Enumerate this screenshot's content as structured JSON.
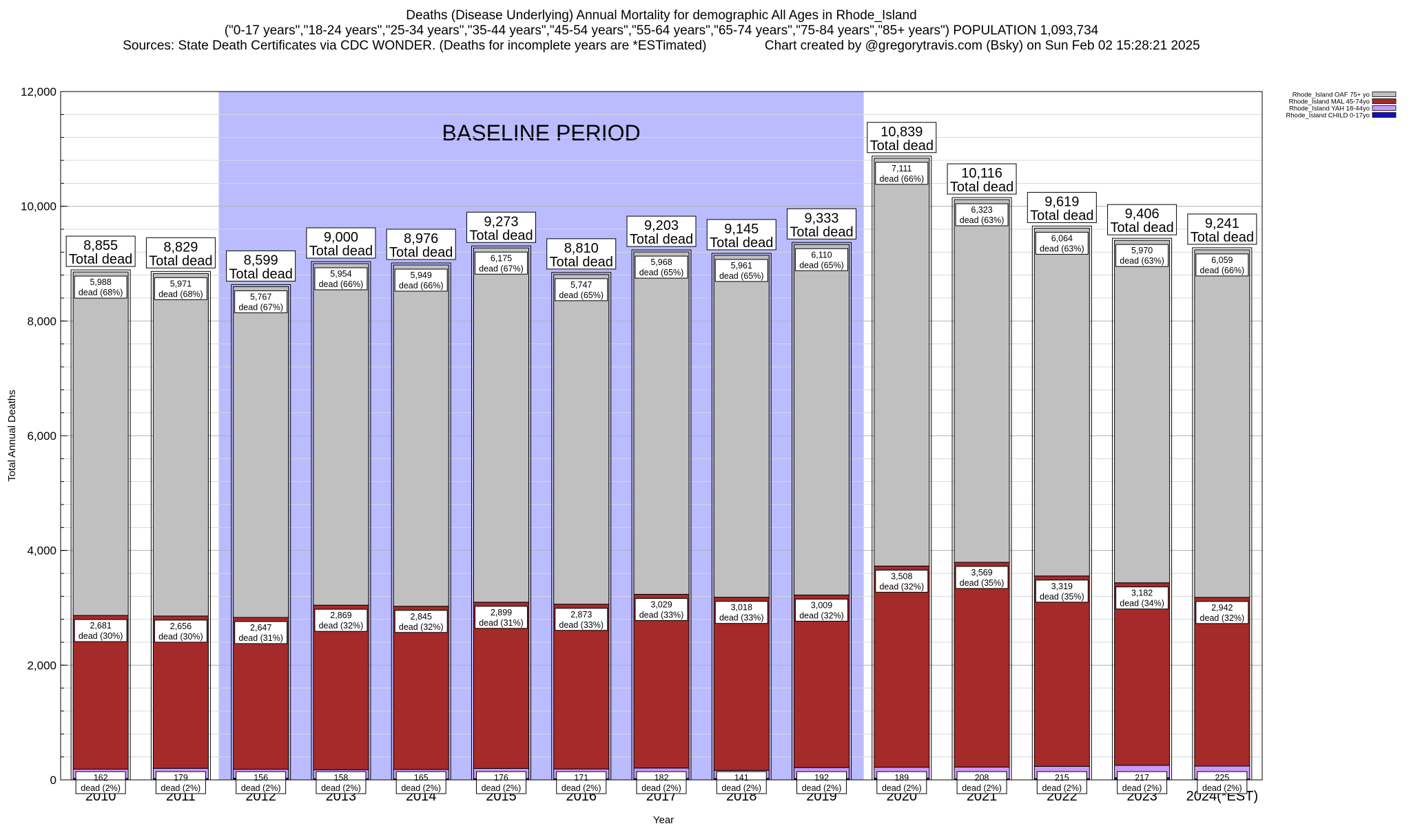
{
  "header": {
    "title_line1": "Deaths (Disease Underlying) Annual Mortality for demographic All Ages in Rhode_Island",
    "title_line2": "(\"0-17 years\",\"18-24 years\",\"25-34 years\",\"35-44 years\",\"45-54 years\",\"55-64 years\",\"65-74 years\",\"75-84 years\",\"85+ years\") POPULATION 1,093,734",
    "sources": "Sources: State Death Certificates via CDC WONDER. (Deaths for incomplete years are *ESTimated)",
    "credit": "Chart created by @gregorytravis.com (Bsky) on Sun Feb 02 15:28:21 2025"
  },
  "chart_data": {
    "type": "bar",
    "stacked": true,
    "categories": [
      "2010",
      "2011",
      "2012",
      "2013",
      "2014",
      "2015",
      "2016",
      "2017",
      "2018",
      "2019",
      "2020",
      "2021",
      "2022",
      "2023",
      "2024(*EST)"
    ],
    "xlabel": "Year",
    "ylabel": "Total Annual Deaths",
    "ylim": [
      0,
      12000
    ],
    "yticks": [
      "0",
      "2,000",
      "4,000",
      "6,000",
      "8,000",
      "10,000",
      "12,000"
    ],
    "grid": true,
    "legend_placement": "top-right",
    "baseline_label": "BASELINE PERIOD",
    "baseline_range": [
      "2012",
      "2019"
    ],
    "baseline_color": "#bbbbff",
    "totals": [
      8855,
      8829,
      8599,
      9000,
      8976,
      9273,
      8810,
      9203,
      9145,
      9333,
      10839,
      10116,
      9619,
      9406,
      9241
    ],
    "total_labels": [
      "8,855",
      "8,829",
      "8,599",
      "9,000",
      "8,976",
      "9,273",
      "8,810",
      "9,203",
      "9,145",
      "9,333",
      "10,839",
      "10,116",
      "9,619",
      "9,406",
      "9,241"
    ],
    "total_suffix": "Total dead",
    "series": [
      {
        "name": "Rhode_Island CHILD 0-17yo",
        "color": "#1010c0",
        "values": [
          24,
          22,
          29,
          19,
          17,
          23,
          19,
          24,
          25,
          22,
          31,
          16,
          21,
          37,
          15
        ],
        "labels": []
      },
      {
        "name": "Rhode_Island YAH 18-44yo",
        "color": "#cc99ff",
        "values": [
          162,
          179,
          156,
          158,
          165,
          176,
          171,
          182,
          141,
          192,
          189,
          208,
          215,
          217,
          225
        ],
        "labels": [
          "162",
          "179",
          "156",
          "158",
          "165",
          "176",
          "171",
          "182",
          "141",
          "192",
          "189",
          "208",
          "215",
          "217",
          "225"
        ],
        "pct_labels": [
          "dead (2%)",
          "dead (2%)",
          "dead (2%)",
          "dead (2%)",
          "dead (2%)",
          "dead (2%)",
          "dead (2%)",
          "dead (2%)",
          "dead (2%)",
          "dead (2%)",
          "dead (2%)",
          "dead (2%)",
          "dead (2%)",
          "dead (2%)",
          "dead (2%)"
        ]
      },
      {
        "name": "Rhode_Island MAL 45-74yo",
        "color": "#a52a2a",
        "values": [
          2681,
          2656,
          2647,
          2869,
          2845,
          2899,
          2873,
          3029,
          3018,
          3009,
          3508,
          3569,
          3319,
          3182,
          2942
        ],
        "labels": [
          "2,681",
          "2,656",
          "2,647",
          "2,869",
          "2,845",
          "2,899",
          "2,873",
          "3,029",
          "3,018",
          "3,009",
          "3,508",
          "3,569",
          "3,319",
          "3,182",
          "2,942"
        ],
        "pct_labels": [
          "dead (30%)",
          "dead (30%)",
          "dead (31%)",
          "dead (32%)",
          "dead (32%)",
          "dead (31%)",
          "dead (33%)",
          "dead (33%)",
          "dead (33%)",
          "dead (32%)",
          "dead (32%)",
          "dead (35%)",
          "dead (35%)",
          "dead (34%)",
          "dead (32%)"
        ]
      },
      {
        "name": "Rhode_Island OAF 75+ yo",
        "color": "#c0c0c0",
        "values": [
          5988,
          5971,
          5767,
          5954,
          5949,
          6175,
          5747,
          5968,
          5961,
          6110,
          7111,
          6323,
          6064,
          5970,
          6059
        ],
        "labels": [
          "5,988",
          "5,971",
          "5,767",
          "5,954",
          "5,949",
          "6,175",
          "5,747",
          "5,968",
          "5,961",
          "6,110",
          "7,111",
          "6,323",
          "6,064",
          "5,970",
          "6,059"
        ],
        "pct_labels": [
          "dead (68%)",
          "dead (68%)",
          "dead (67%)",
          "dead (66%)",
          "dead (66%)",
          "dead (67%)",
          "dead (65%)",
          "dead (65%)",
          "dead (65%)",
          "dead (65%)",
          "dead (66%)",
          "dead (63%)",
          "dead (63%)",
          "dead (63%)",
          "dead (66%)"
        ]
      }
    ],
    "legend_order": [
      "Rhode_Island OAF 75+ yo",
      "Rhode_Island MAL 45-74yo",
      "Rhode_Island YAH 18-44yo",
      "Rhode_Island CHILD 0-17yo"
    ]
  }
}
